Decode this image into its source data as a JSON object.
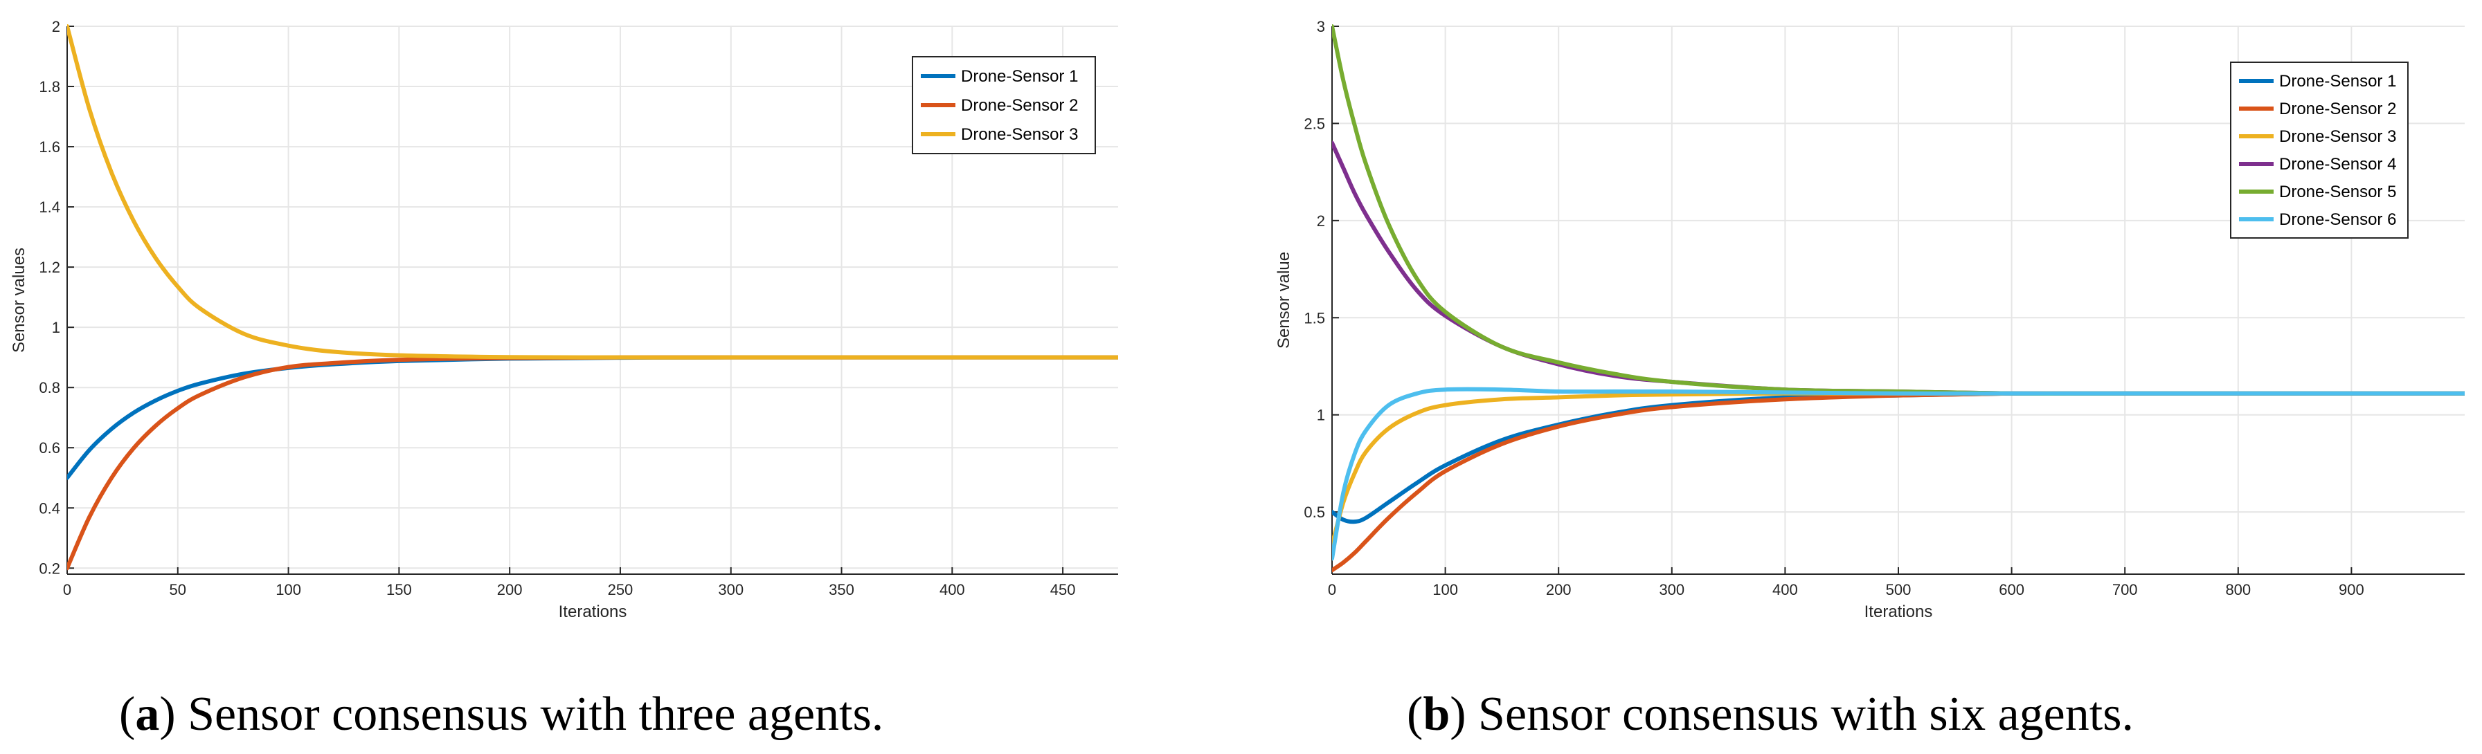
{
  "chart_data": [
    {
      "type": "line",
      "xlabel": "Iterations",
      "ylabel": "Sensor values",
      "xlim": [
        0,
        475
      ],
      "ylim": [
        0.18,
        2
      ],
      "xticks": [
        0,
        50,
        100,
        150,
        200,
        250,
        300,
        350,
        400,
        450
      ],
      "yticks": [
        0.2,
        0.4,
        0.6,
        0.8,
        1,
        1.2,
        1.4,
        1.6,
        1.8,
        2
      ],
      "grid": true,
      "legend_position": "top-right",
      "caption_label": "a",
      "caption_text": ") Sensor consensus with three agents.",
      "x": [
        0,
        10,
        20,
        30,
        40,
        50,
        60,
        80,
        100,
        120,
        150,
        200,
        250,
        300,
        400,
        475
      ],
      "series": [
        {
          "name": "Drone-Sensor 1",
          "color": "#0072BD",
          "values": [
            0.5,
            0.592,
            0.662,
            0.716,
            0.757,
            0.789,
            0.813,
            0.846,
            0.865,
            0.877,
            0.888,
            0.896,
            0.899,
            0.9,
            0.9,
            0.9
          ]
        },
        {
          "name": "Drone-Sensor 2",
          "color": "#D95319",
          "values": [
            0.2,
            0.369,
            0.499,
            0.598,
            0.673,
            0.731,
            0.775,
            0.834,
            0.868,
            0.881,
            0.892,
            0.898,
            0.9,
            0.9,
            0.9,
            0.9
          ]
        },
        {
          "name": "Drone-Sensor 3",
          "color": "#EDB120",
          "values": [
            2.0,
            1.726,
            1.515,
            1.354,
            1.23,
            1.135,
            1.063,
            0.978,
            0.939,
            0.919,
            0.907,
            0.901,
            0.9,
            0.9,
            0.9,
            0.9
          ]
        }
      ]
    },
    {
      "type": "line",
      "xlabel": "Iterations",
      "ylabel": "Sensor value",
      "xlim": [
        0,
        1000
      ],
      "ylim": [
        0.18,
        3
      ],
      "xticks": [
        0,
        100,
        200,
        300,
        400,
        500,
        600,
        700,
        800,
        900
      ],
      "yticks": [
        0.5,
        1,
        1.5,
        2,
        2.5,
        3
      ],
      "grid": true,
      "legend_position": "top-right",
      "caption_label": "b",
      "caption_text": ") Sensor consensus with six agents.",
      "x": [
        0,
        10,
        20,
        30,
        50,
        75,
        100,
        150,
        200,
        250,
        300,
        400,
        500,
        600,
        700,
        800,
        1000
      ],
      "series": [
        {
          "name": "Drone-Sensor 1",
          "color": "#0072BD",
          "values": [
            0.5,
            0.46,
            0.45,
            0.47,
            0.55,
            0.65,
            0.74,
            0.87,
            0.95,
            1.01,
            1.05,
            1.09,
            1.1,
            1.11,
            1.11,
            1.11,
            1.11
          ]
        },
        {
          "name": "Drone-Sensor 2",
          "color": "#D95319",
          "values": [
            0.2,
            0.24,
            0.29,
            0.35,
            0.47,
            0.6,
            0.71,
            0.85,
            0.94,
            1.0,
            1.04,
            1.08,
            1.1,
            1.11,
            1.11,
            1.11,
            1.11
          ]
        },
        {
          "name": "Drone-Sensor 3",
          "color": "#EDB120",
          "values": [
            0.33,
            0.55,
            0.7,
            0.81,
            0.93,
            1.01,
            1.05,
            1.08,
            1.09,
            1.1,
            1.105,
            1.11,
            1.11,
            1.11,
            1.11,
            1.11,
            1.11
          ]
        },
        {
          "name": "Drone-Sensor 4",
          "color": "#7E2F8E",
          "values": [
            2.4,
            2.27,
            2.14,
            2.03,
            1.84,
            1.64,
            1.51,
            1.35,
            1.26,
            1.2,
            1.17,
            1.13,
            1.12,
            1.11,
            1.11,
            1.11,
            1.11
          ]
        },
        {
          "name": "Drone-Sensor 5",
          "color": "#77AC30",
          "values": [
            3.0,
            2.72,
            2.49,
            2.29,
            1.98,
            1.7,
            1.53,
            1.35,
            1.27,
            1.21,
            1.17,
            1.13,
            1.12,
            1.11,
            1.11,
            1.11,
            1.11
          ]
        },
        {
          "name": "Drone-Sensor 6",
          "color": "#4DBEEE",
          "values": [
            0.26,
            0.6,
            0.8,
            0.92,
            1.05,
            1.11,
            1.13,
            1.13,
            1.12,
            1.12,
            1.12,
            1.115,
            1.11,
            1.11,
            1.11,
            1.11,
            1.11
          ]
        }
      ]
    }
  ]
}
